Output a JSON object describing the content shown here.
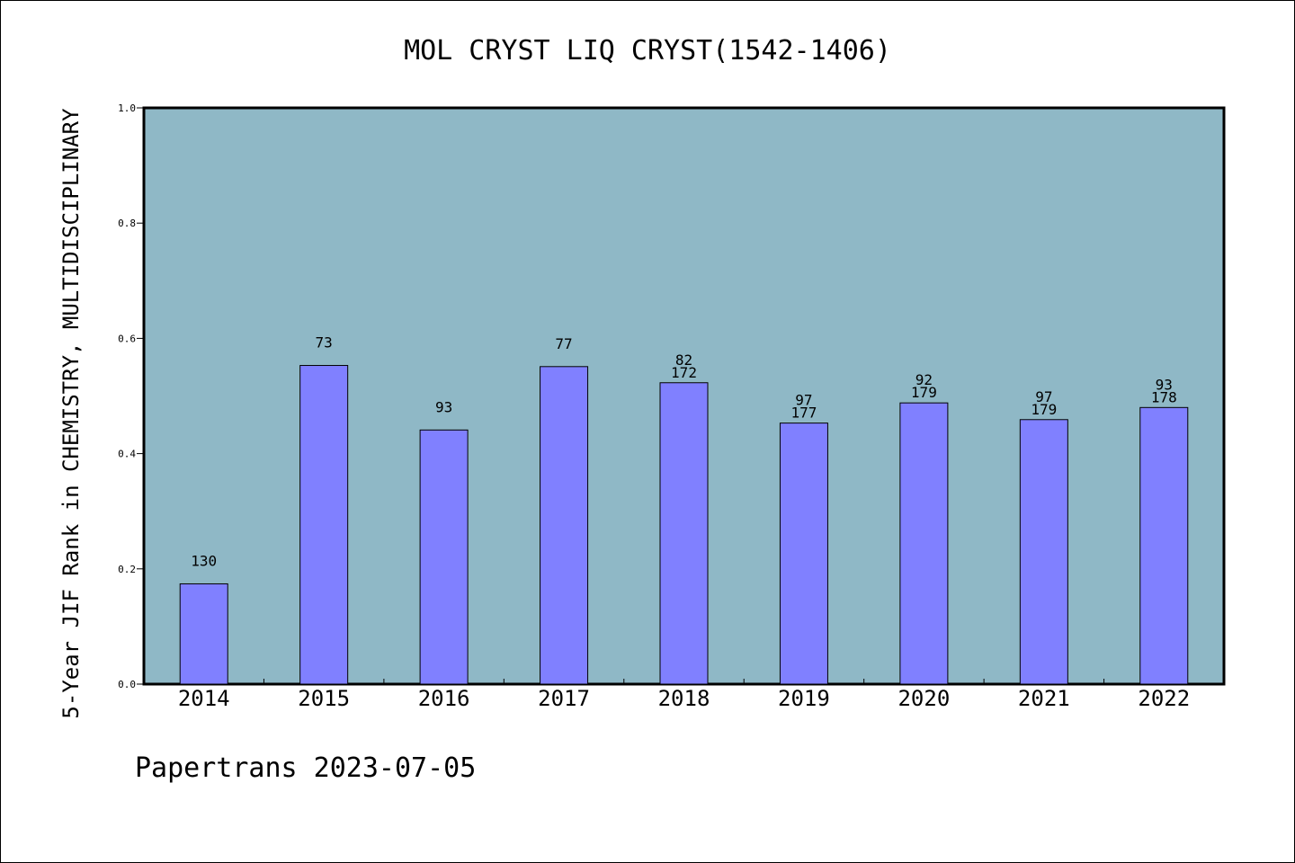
{
  "chart_data": {
    "type": "bar",
    "title": "MOL CRYST LIQ CRYST(1542-1406)",
    "ylabel": "5-Year JIF Rank in CHEMISTRY, MULTIDISCIPLINARY",
    "xlabel": "",
    "ylim": [
      0,
      1.0
    ],
    "yticks": [
      "0.0",
      "0.2",
      "0.4",
      "0.6",
      "0.8",
      "1.0"
    ],
    "categories": [
      "2014",
      "2015",
      "2016",
      "2017",
      "2018",
      "2019",
      "2020",
      "2021",
      "2022"
    ],
    "values": [
      0.174,
      0.553,
      0.441,
      0.551,
      0.523,
      0.453,
      0.488,
      0.459,
      0.48
    ],
    "rank_labels": [
      [
        "130"
      ],
      [
        "73"
      ],
      [
        "93"
      ],
      [
        "77"
      ],
      [
        "82",
        "172"
      ],
      [
        "97",
        "177"
      ],
      [
        "92",
        "179"
      ],
      [
        "97",
        "179"
      ],
      [
        "93",
        "178"
      ]
    ],
    "grid": false,
    "bar_color": "#8080ff",
    "plot_background": "#8fb8c6"
  },
  "footer": "Papertrans 2023-07-05"
}
